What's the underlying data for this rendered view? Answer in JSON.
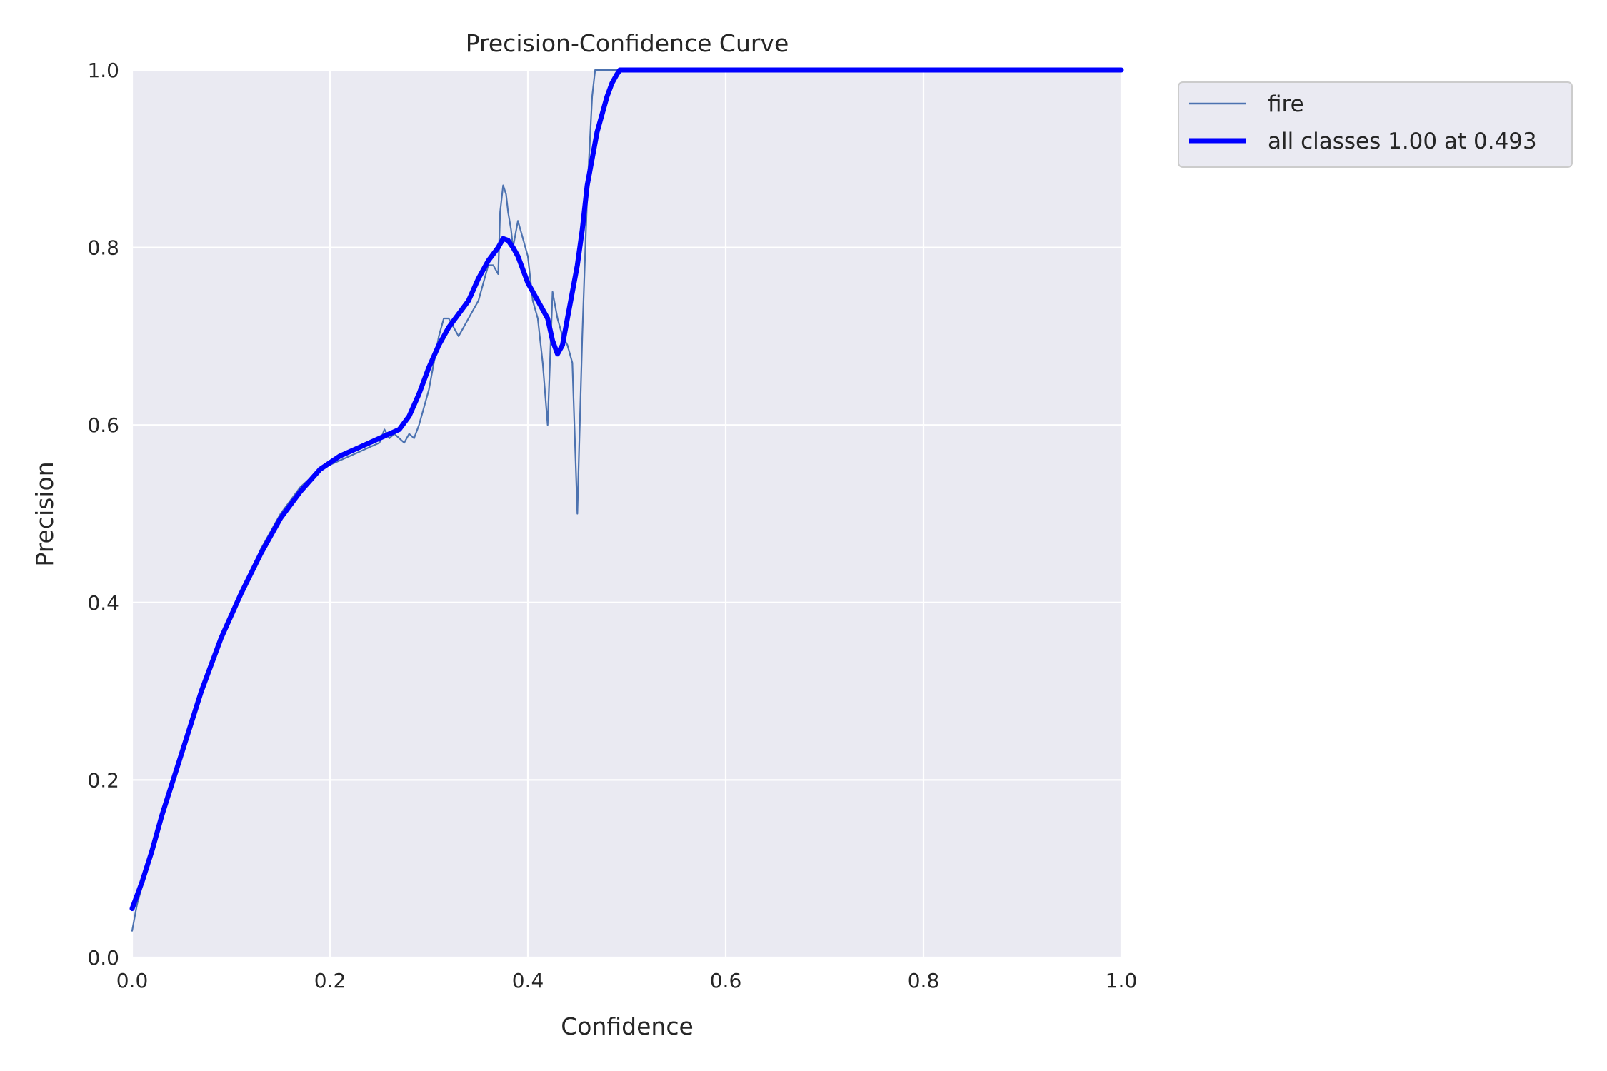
{
  "chart_data": {
    "type": "line",
    "title": "Precision-Confidence Curve",
    "xlabel": "Confidence",
    "ylabel": "Precision",
    "xlim": [
      0,
      1
    ],
    "ylim": [
      0,
      1
    ],
    "xticks": [
      "0.0",
      "0.2",
      "0.4",
      "0.6",
      "0.8",
      "1.0"
    ],
    "yticks": [
      "0.0",
      "0.2",
      "0.4",
      "0.6",
      "0.8",
      "1.0"
    ],
    "grid": true,
    "legend_position": "outside-top-right",
    "series": [
      {
        "name": "fire",
        "color": "#4c72b0",
        "line": "thin",
        "x": [
          0.0,
          0.005,
          0.01,
          0.02,
          0.03,
          0.05,
          0.07,
          0.09,
          0.11,
          0.13,
          0.15,
          0.17,
          0.19,
          0.21,
          0.22,
          0.23,
          0.24,
          0.25,
          0.255,
          0.26,
          0.265,
          0.27,
          0.275,
          0.28,
          0.285,
          0.29,
          0.295,
          0.3,
          0.305,
          0.31,
          0.315,
          0.32,
          0.325,
          0.33,
          0.335,
          0.34,
          0.345,
          0.35,
          0.355,
          0.36,
          0.365,
          0.37,
          0.372,
          0.375,
          0.378,
          0.38,
          0.383,
          0.385,
          0.39,
          0.395,
          0.4,
          0.405,
          0.41,
          0.415,
          0.42,
          0.425,
          0.43,
          0.435,
          0.44,
          0.445,
          0.45,
          0.452,
          0.455,
          0.46,
          0.465,
          0.468,
          0.47,
          0.48,
          0.49,
          0.5,
          0.6,
          0.7,
          0.8,
          0.9,
          1.0
        ],
        "y": [
          0.03,
          0.06,
          0.08,
          0.12,
          0.16,
          0.23,
          0.3,
          0.36,
          0.41,
          0.46,
          0.5,
          0.53,
          0.55,
          0.56,
          0.565,
          0.57,
          0.575,
          0.58,
          0.595,
          0.585,
          0.59,
          0.585,
          0.58,
          0.59,
          0.585,
          0.6,
          0.62,
          0.64,
          0.67,
          0.7,
          0.72,
          0.72,
          0.71,
          0.7,
          0.71,
          0.72,
          0.73,
          0.74,
          0.76,
          0.78,
          0.78,
          0.77,
          0.84,
          0.87,
          0.86,
          0.84,
          0.82,
          0.8,
          0.83,
          0.81,
          0.79,
          0.74,
          0.72,
          0.67,
          0.6,
          0.75,
          0.72,
          0.7,
          0.69,
          0.67,
          0.5,
          0.58,
          0.7,
          0.86,
          0.97,
          1.0,
          1.0,
          1.0,
          1.0,
          1.0,
          1.0,
          1.0,
          1.0,
          1.0,
          1.0
        ]
      },
      {
        "name": "all classes 1.00 at 0.493",
        "color": "#0000ff",
        "line": "thick",
        "x": [
          0.0,
          0.01,
          0.02,
          0.03,
          0.05,
          0.07,
          0.09,
          0.11,
          0.13,
          0.15,
          0.17,
          0.19,
          0.21,
          0.23,
          0.25,
          0.27,
          0.28,
          0.29,
          0.3,
          0.31,
          0.32,
          0.33,
          0.34,
          0.35,
          0.36,
          0.37,
          0.375,
          0.38,
          0.385,
          0.39,
          0.395,
          0.4,
          0.41,
          0.42,
          0.425,
          0.43,
          0.435,
          0.44,
          0.45,
          0.455,
          0.46,
          0.47,
          0.48,
          0.485,
          0.49,
          0.493,
          0.5,
          0.6,
          0.7,
          0.8,
          0.9,
          1.0
        ],
        "y": [
          0.055,
          0.085,
          0.12,
          0.16,
          0.23,
          0.3,
          0.36,
          0.41,
          0.455,
          0.495,
          0.525,
          0.55,
          0.565,
          0.575,
          0.585,
          0.595,
          0.61,
          0.635,
          0.665,
          0.69,
          0.71,
          0.725,
          0.74,
          0.765,
          0.785,
          0.8,
          0.81,
          0.808,
          0.8,
          0.79,
          0.775,
          0.76,
          0.74,
          0.72,
          0.695,
          0.68,
          0.69,
          0.72,
          0.78,
          0.82,
          0.87,
          0.93,
          0.97,
          0.985,
          0.995,
          1.0,
          1.0,
          1.0,
          1.0,
          1.0,
          1.0,
          1.0
        ]
      }
    ]
  }
}
